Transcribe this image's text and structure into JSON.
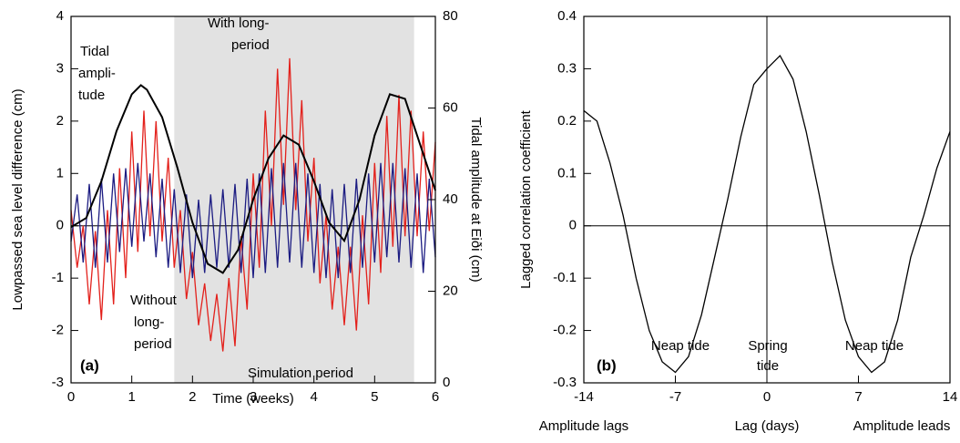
{
  "chart_data": [
    {
      "type": "line",
      "xlabel": "Time (weeks)",
      "ylabel": "Lowpassed sea level difference (cm)",
      "y2label": "Tidal amplitude at Eiði (cm)",
      "xlim": [
        0,
        6
      ],
      "xticks": [
        0,
        1,
        2,
        3,
        4,
        5,
        6
      ],
      "ylim": [
        -3,
        4
      ],
      "yticks": [
        -3,
        -2,
        -1,
        0,
        1,
        2,
        3,
        4
      ],
      "y2lim": [
        0,
        80
      ],
      "y2ticks": [
        0,
        20,
        40,
        60,
        80
      ],
      "hline": 0,
      "shade": [
        1.7,
        5.65
      ],
      "shade_color": "#e2e2e2",
      "x": [
        0,
        0.1,
        0.2,
        0.3,
        0.4,
        0.5,
        0.6,
        0.7,
        0.8,
        0.9,
        1,
        1.1,
        1.2,
        1.3,
        1.4,
        1.5,
        1.6,
        1.7,
        1.8,
        1.9,
        2,
        2.1,
        2.2,
        2.3,
        2.4,
        2.5,
        2.6,
        2.7,
        2.8,
        2.9,
        3,
        3.1,
        3.2,
        3.3,
        3.4,
        3.5,
        3.6,
        3.7,
        3.8,
        3.9,
        4,
        4.1,
        4.2,
        4.3,
        4.4,
        4.5,
        4.6,
        4.7,
        4.8,
        4.9,
        5,
        5.1,
        5.2,
        5.3,
        5.4,
        5.5,
        5.6,
        5.7,
        5.8,
        5.9,
        6
      ],
      "series": [
        {
          "name": [
            "With long-",
            "period"
          ],
          "color": "#e3211c",
          "values": [
            0.3,
            -0.8,
            0,
            -1.5,
            -0.1,
            -1.8,
            0.3,
            -1.5,
            1.1,
            -1.0,
            1.8,
            -0.5,
            2.2,
            -0.2,
            2.0,
            -0.3,
            1.3,
            -0.8,
            0.3,
            -1.4,
            -0.5,
            -1.9,
            -1.1,
            -2.2,
            -1.3,
            -2.4,
            -1.0,
            -2.3,
            -0.2,
            -1.6,
            1.0,
            -0.8,
            2.2,
            0,
            3.0,
            0.4,
            3.2,
            0.3,
            2.4,
            -0.3,
            1.3,
            -1.1,
            0.2,
            -1.6,
            -0.4,
            -1.9,
            -0.4,
            -2.0,
            0.2,
            -1.5,
            1.2,
            -0.9,
            2.1,
            -0.4,
            2.5,
            -0.2,
            2.2,
            -0.2,
            1.8,
            -0.1,
            1.6
          ]
        },
        {
          "name": [
            "Without",
            "long-",
            "period"
          ],
          "color": "#1c1c82",
          "values": [
            -0.3,
            0.6,
            -0.7,
            0.8,
            -0.8,
            0.9,
            -0.7,
            1.0,
            -0.5,
            1.1,
            -0.4,
            1.2,
            -0.3,
            1.0,
            -0.6,
            0.9,
            -0.8,
            0.7,
            -0.9,
            0.6,
            -1.0,
            0.5,
            -0.9,
            0.6,
            -0.8,
            0.7,
            -0.8,
            0.8,
            -0.9,
            0.9,
            -1.0,
            1.0,
            -0.9,
            1.1,
            -0.8,
            1.2,
            -0.7,
            1.2,
            -0.8,
            1.0,
            -0.9,
            0.8,
            -1.0,
            0.7,
            -1.0,
            0.8,
            -0.9,
            0.9,
            -0.8,
            1.0,
            -0.7,
            1.2,
            -0.6,
            1.2,
            -0.7,
            1.1,
            -0.8,
            1.0,
            -0.9,
            0.9,
            -0.6
          ]
        },
        {
          "name": [
            "Tidal",
            "ampli-",
            "tude"
          ],
          "color": "#000000",
          "axis": "y2",
          "x": [
            0,
            0.25,
            0.5,
            0.75,
            1,
            1.15,
            1.25,
            1.5,
            1.75,
            2,
            2.25,
            2.5,
            2.75,
            3,
            3.25,
            3.5,
            3.75,
            4,
            4.25,
            4.5,
            4.75,
            5,
            5.25,
            5.5,
            5.75,
            6
          ],
          "values": [
            34,
            36,
            44,
            55,
            63,
            65,
            64,
            58,
            47,
            35,
            26,
            24,
            29,
            40,
            49,
            54,
            52,
            44,
            35,
            31,
            40,
            54,
            63,
            62,
            52,
            42
          ]
        }
      ],
      "annotations": [
        [
          "(a)"
        ],
        [
          "Simulation period"
        ]
      ]
    },
    {
      "type": "line",
      "xlabel": "Lag (days)",
      "ylabel": "Lagged correlation coefficient",
      "xlim": [
        -14,
        14
      ],
      "xticks": [
        -14,
        -7,
        0,
        7,
        14
      ],
      "ylim": [
        -0.3,
        0.4
      ],
      "yticks": [
        -0.3,
        -0.2,
        -0.1,
        0,
        0.1,
        0.2,
        0.3,
        0.4
      ],
      "hline": 0,
      "vline": 0,
      "x": [
        -14,
        -13,
        -12,
        -11,
        -10,
        -9,
        -8,
        -7,
        -6,
        -5,
        -4,
        -3,
        -2,
        -1,
        0,
        1,
        2,
        3,
        4,
        5,
        6,
        7,
        8,
        9,
        10,
        11,
        12,
        13,
        14
      ],
      "series": [
        {
          "color": "#000000",
          "values": [
            0.22,
            0.2,
            0.12,
            0.02,
            -0.1,
            -0.2,
            -0.26,
            -0.28,
            -0.25,
            -0.17,
            -0.06,
            0.05,
            0.17,
            0.27,
            0.3,
            0.325,
            0.28,
            0.18,
            0.06,
            -0.07,
            -0.18,
            -0.25,
            -0.28,
            -0.26,
            -0.18,
            -0.06,
            0.02,
            0.11,
            0.18
          ]
        }
      ],
      "annotations": [
        [
          "(b)"
        ],
        [
          "Neap tide"
        ],
        [
          "Spring",
          "tide"
        ],
        [
          "Neap tide"
        ],
        [
          "Amplitude lags"
        ],
        [
          "Amplitude leads"
        ]
      ]
    }
  ]
}
